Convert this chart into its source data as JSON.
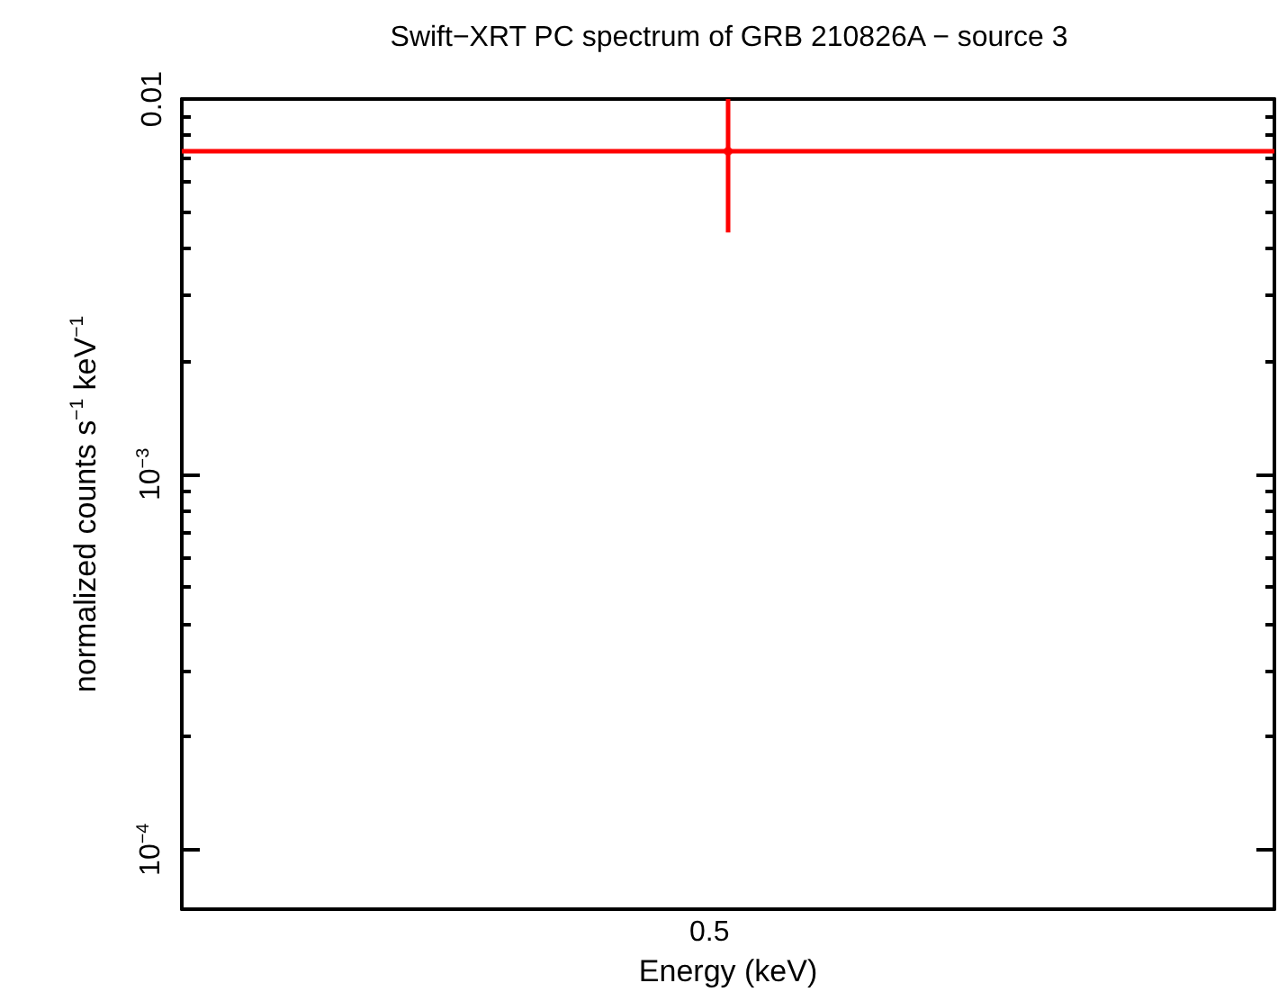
{
  "chart_data": {
    "type": "scatter",
    "title": "Swift−XRT PC spectrum of GRB 210826A − source 3",
    "xlabel": "Energy (keV)",
    "ylabel": "normalized counts s$^{−1}$ keV$^{−1}$",
    "log": "y",
    "marker": "circle",
    "grid": false,
    "ref_lines": [
      {
        "axis": "y",
        "value": 0.00726,
        "color": "#ff0000"
      }
    ],
    "categories": [
      null
    ],
    "annotations": [
      "0.5"
    ],
    "ylim": [
      6.94e-05,
      0.01
    ],
    "yticks": [
      {
        "value": 0.0001,
        "label": "10$^{−4}$"
      },
      {
        "value": 0.0002,
        "label": null
      },
      {
        "value": 0.0003,
        "label": null
      },
      {
        "value": 0.0004,
        "label": null
      },
      {
        "value": 0.0005,
        "label": null
      },
      {
        "value": 0.0006,
        "label": null
      },
      {
        "value": 0.0007,
        "label": null
      },
      {
        "value": 0.0008,
        "label": null
      },
      {
        "value": 0.0009,
        "label": null
      },
      {
        "value": 0.001,
        "label": "10$^{−3}$"
      },
      {
        "value": 0.002,
        "label": null
      },
      {
        "value": 0.003,
        "label": null
      },
      {
        "value": 0.004,
        "label": null
      },
      {
        "value": 0.005,
        "label": null
      },
      {
        "value": 0.006,
        "label": null
      },
      {
        "value": 0.007,
        "label": null
      },
      {
        "value": 0.008,
        "label": null
      },
      {
        "value": 0.009,
        "label": null
      },
      {
        "value": 0.01,
        "label": "0.01"
      }
    ],
    "series": [
      {
        "color": "#ff0000",
        "values": [
          0.00726
        ],
        "errors": [
          [
            0.00441,
            0.01
          ]
        ]
      }
    ]
  }
}
